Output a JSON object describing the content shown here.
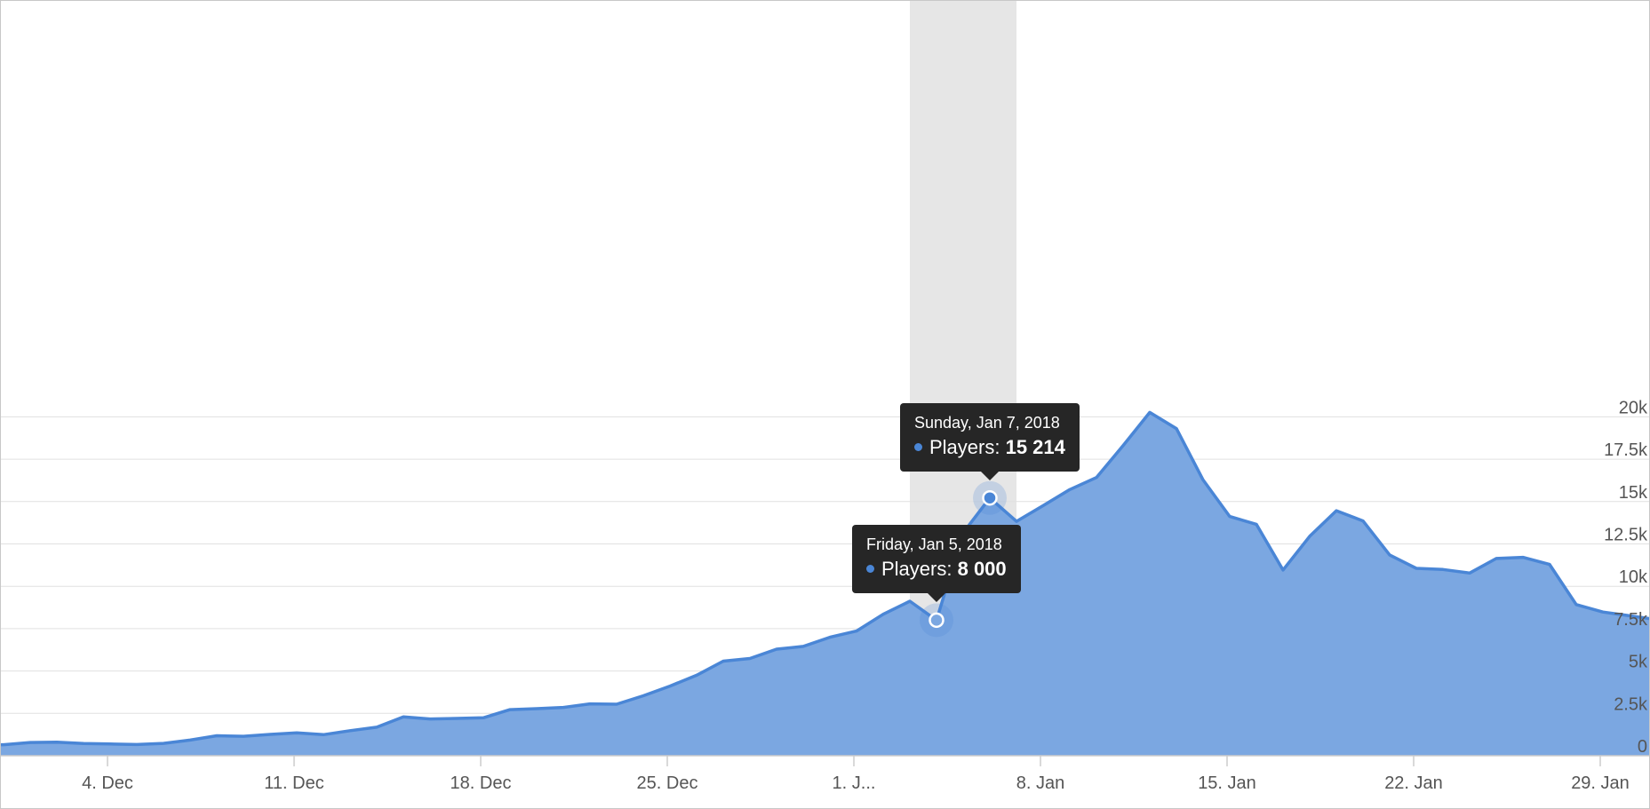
{
  "colors": {
    "series": "#4a86d6",
    "area": "#7ba7e1",
    "grid": "#e0e0e0",
    "crosshair": "#e6e6e6",
    "tooltip_bg": "#262626"
  },
  "chart_data": {
    "type": "area",
    "title": "",
    "xlabel": "",
    "ylabel": "",
    "x_ticks": [
      "4. Dec",
      "11. Dec",
      "18. Dec",
      "25. Dec",
      "1. J...",
      "8. Jan",
      "15. Jan",
      "22. Jan",
      "29. Jan"
    ],
    "y_ticks": [
      "0",
      "2.5k",
      "5k",
      "7.5k",
      "10k",
      "12.5k",
      "15k",
      "17.5k",
      "20k"
    ],
    "ylim": [
      0,
      22000
    ],
    "x_range": [
      "2017-11-30",
      "2018-01-31"
    ],
    "grid": true,
    "legend": "none",
    "series": [
      {
        "values": [
          [
            "2017-11-30",
            650
          ],
          [
            "2017-12-01",
            780
          ],
          [
            "2017-12-02",
            800
          ],
          [
            "2017-12-03",
            720
          ],
          [
            "2017-12-04",
            690
          ],
          [
            "2017-12-05",
            660
          ],
          [
            "2017-12-06",
            730
          ],
          [
            "2017-12-07",
            920
          ],
          [
            "2017-12-08",
            1180
          ],
          [
            "2017-12-09",
            1150
          ],
          [
            "2017-12-10",
            1260
          ],
          [
            "2017-12-11",
            1350
          ],
          [
            "2017-12-12",
            1240
          ],
          [
            "2017-12-13",
            1480
          ],
          [
            "2017-12-14",
            1680
          ],
          [
            "2017-12-15",
            2290
          ],
          [
            "2017-12-16",
            2170
          ],
          [
            "2017-12-17",
            2200
          ],
          [
            "2017-12-18",
            2240
          ],
          [
            "2017-12-19",
            2720
          ],
          [
            "2017-12-20",
            2780
          ],
          [
            "2017-12-21",
            2850
          ],
          [
            "2017-12-22",
            3060
          ],
          [
            "2017-12-23",
            3040
          ],
          [
            "2017-12-24",
            3540
          ],
          [
            "2017-12-25",
            4110
          ],
          [
            "2017-12-26",
            4750
          ],
          [
            "2017-12-27",
            5580
          ],
          [
            "2017-12-28",
            5740
          ],
          [
            "2017-12-29",
            6290
          ],
          [
            "2017-12-30",
            6450
          ],
          [
            "2017-12-31",
            6990
          ],
          [
            "2018-01-01",
            7360
          ],
          [
            "2018-01-02",
            8350
          ],
          [
            "2018-01-03",
            9120
          ],
          [
            "2018-01-04",
            8000
          ],
          [
            "2018-01-05",
            13160
          ],
          [
            "2018-01-06",
            15214
          ],
          [
            "2018-01-07",
            13830
          ],
          [
            "2018-01-08",
            14760
          ],
          [
            "2018-01-09",
            15710
          ],
          [
            "2018-01-10",
            16420
          ],
          [
            "2018-01-11",
            18300
          ],
          [
            "2018-01-12",
            20260
          ],
          [
            "2018-01-13",
            19310
          ],
          [
            "2018-01-14",
            16280
          ],
          [
            "2018-01-15",
            14120
          ],
          [
            "2018-01-16",
            13660
          ],
          [
            "2018-01-17",
            10960
          ],
          [
            "2018-01-18",
            12950
          ],
          [
            "2018-01-19",
            14460
          ],
          [
            "2018-01-20",
            13860
          ],
          [
            "2018-01-21",
            11850
          ],
          [
            "2018-01-22",
            11060
          ],
          [
            "2018-01-23",
            10990
          ],
          [
            "2018-01-24",
            10780
          ],
          [
            "2018-01-25",
            11640
          ],
          [
            "2018-01-26",
            11710
          ],
          [
            "2018-01-27",
            11290
          ],
          [
            "2018-01-28",
            8920
          ],
          [
            "2018-01-29",
            8480
          ],
          [
            "2018-01-30",
            8260
          ]
        ]
      }
    ],
    "tooltips": [
      {
        "date": "Friday, Jan 5, 2018",
        "label": "Players: ",
        "value": "8 000",
        "x": "2018-01-04",
        "y": 8000
      },
      {
        "date": "Sunday, Jan 7, 2018",
        "label": "Players: ",
        "value": "15 214",
        "x": "2018-01-06",
        "y": 15214
      }
    ]
  }
}
